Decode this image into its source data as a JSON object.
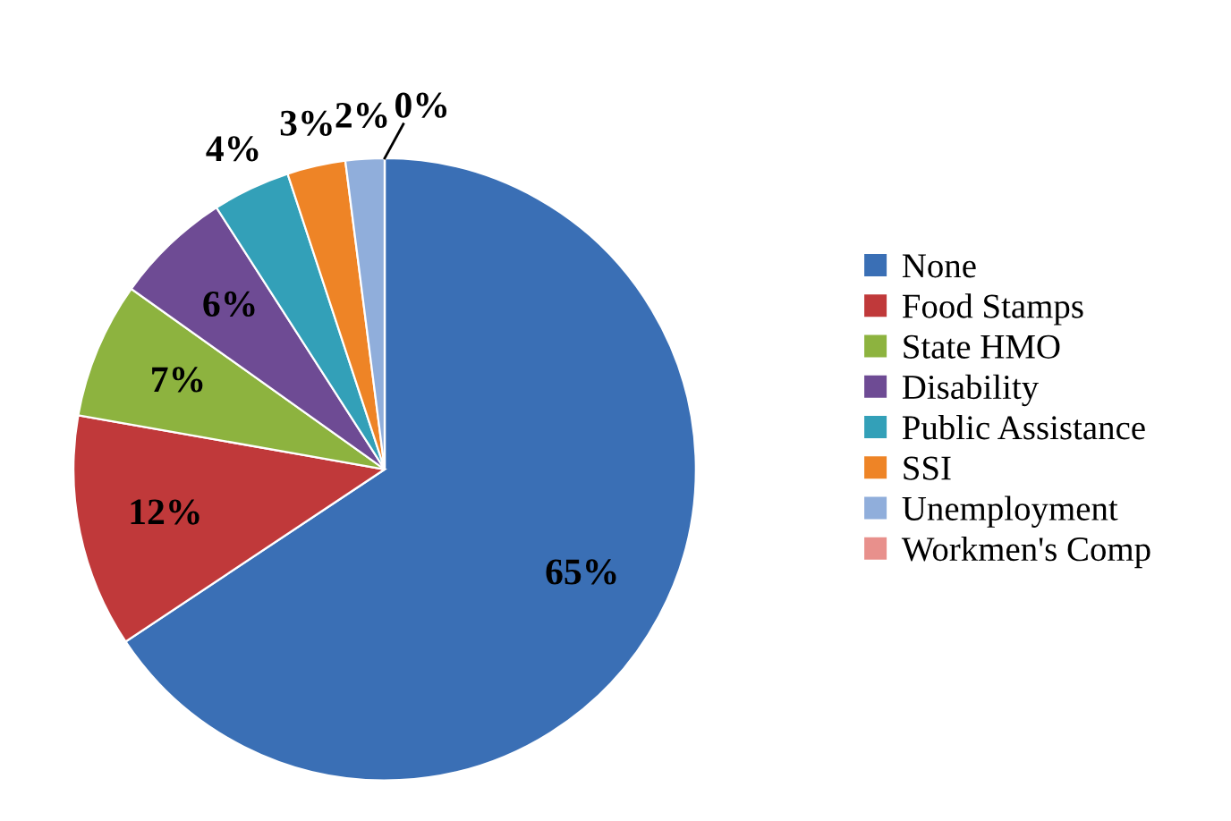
{
  "chart_data": {
    "type": "pie",
    "categories": [
      "None",
      "Food Stamps",
      "State HMO",
      "Disability",
      "Public Assistance",
      "SSI",
      "Unemployment",
      "Workmen's Comp"
    ],
    "values": [
      65,
      12,
      7,
      6,
      4,
      3,
      2,
      0
    ],
    "colors": [
      "#3a6fb5",
      "#c0393a",
      "#8db33f",
      "#6e4b94",
      "#33a0b8",
      "#ee8426",
      "#90aedb",
      "#e8908c"
    ],
    "value_labels": [
      "65%",
      "12%",
      "7%",
      "6%",
      "4%",
      "3%",
      "2%",
      "0%"
    ],
    "legend": "right"
  }
}
